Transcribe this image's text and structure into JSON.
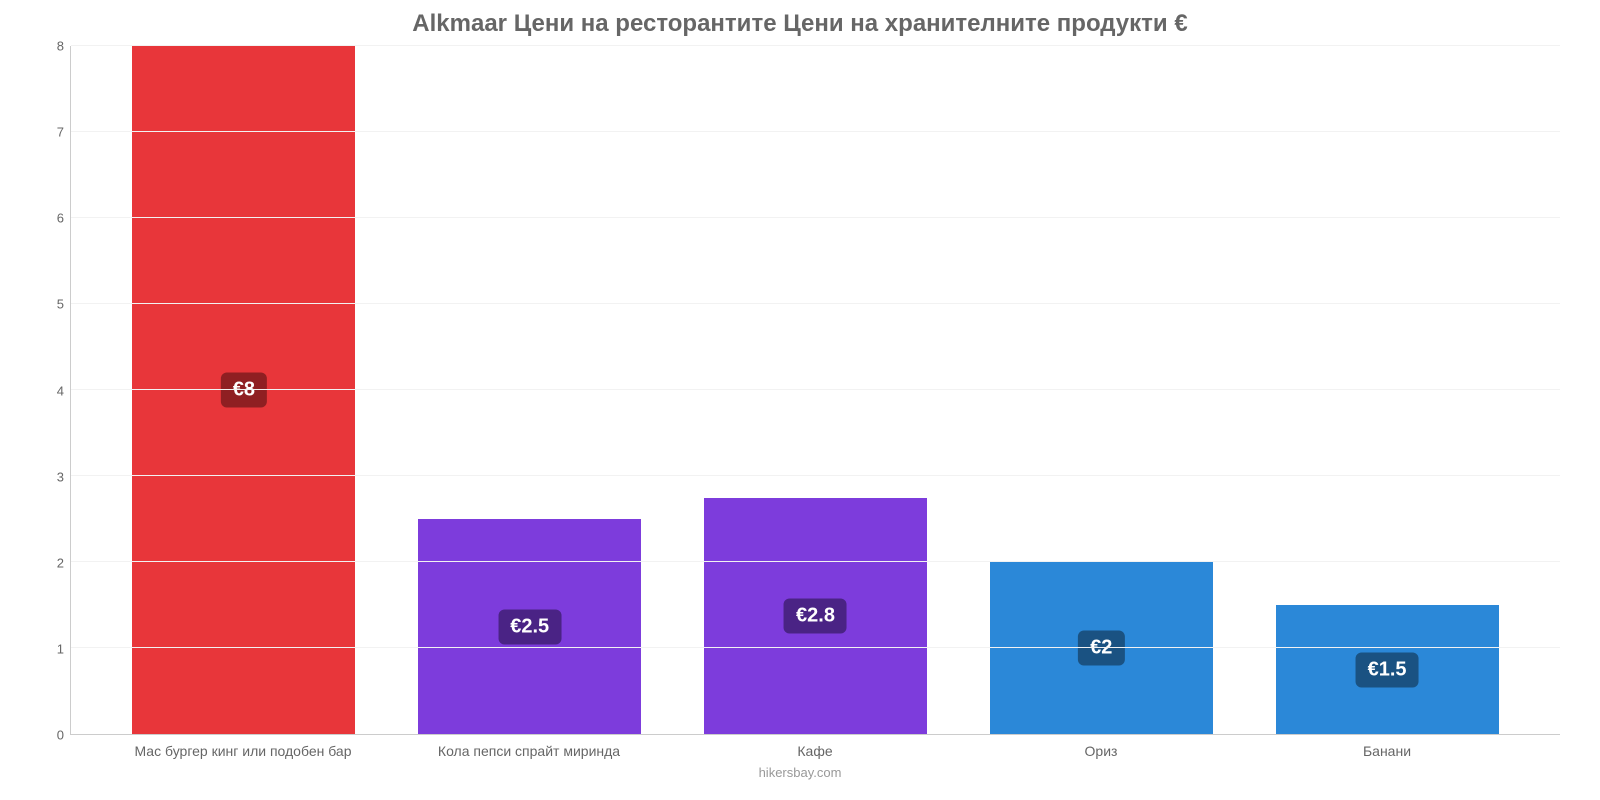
{
  "chart": {
    "type": "bar",
    "title": "Alkmaar Цени на ресторантите Цени на хранителните продукти €",
    "title_color": "#666666",
    "title_fontsize": 24,
    "background_color": "#ffffff",
    "grid_color": "#f2f2f2",
    "axis_color": "#cccccc",
    "ylim": [
      0,
      8
    ],
    "ytick_step": 1,
    "yticks": [
      "0",
      "1",
      "2",
      "3",
      "4",
      "5",
      "6",
      "7",
      "8"
    ],
    "bar_width": 0.78,
    "categories": [
      "Мас бургер кинг или подобен бар",
      "Кола пепси спрайт миринда",
      "Кафе",
      "Ориз",
      "Банани"
    ],
    "values": [
      8,
      2.5,
      2.75,
      2,
      1.5
    ],
    "value_labels": [
      "€8",
      "€2.5",
      "€2.8",
      "€2",
      "€1.5"
    ],
    "bar_colors": [
      "#e8363a",
      "#7d3cdc",
      "#7d3cdc",
      "#2b88d8",
      "#2b88d8"
    ],
    "label_bg_colors": [
      "#8f1f22",
      "#4a2385",
      "#4a2385",
      "#1a5282",
      "#1a5282"
    ],
    "label_text_color": "#ffffff",
    "label_fontsize": 20,
    "x_label_color": "#666666",
    "x_label_fontsize": 14,
    "footer": "hikersbay.com",
    "footer_color": "#999999"
  }
}
